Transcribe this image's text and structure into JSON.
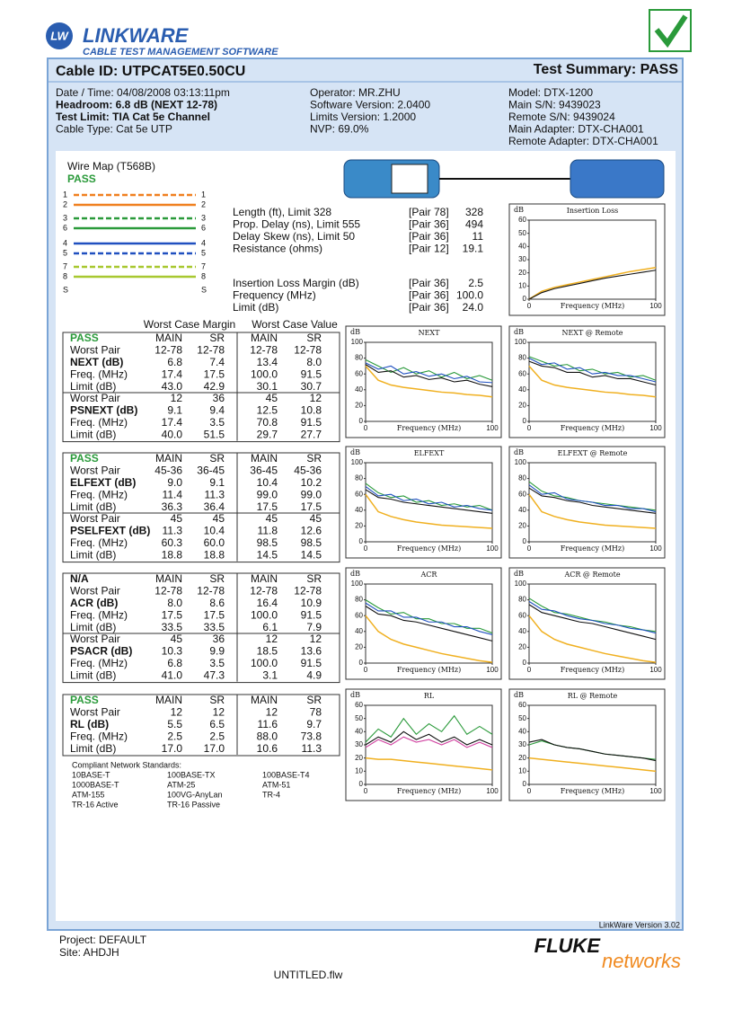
{
  "header": {
    "logo": "LW",
    "brand": "LINKWARE",
    "tagline": "CABLE TEST MANAGEMENT SOFTWARE"
  },
  "cable_id": "Cable ID: UTPCAT5E0.50CU",
  "summary": "Test Summary: PASS",
  "info": [
    [
      "Date / Time: 04/08/2008 03:13:11pm",
      "Headroom: 6.8 dB (NEXT 12-78)",
      "Test Limit: TIA Cat 5e Channel",
      "Cable Type: Cat 5e UTP"
    ],
    [
      "Operator: MR.ZHU",
      "Software Version: 2.0400",
      "Limits Version: 1.2000",
      "NVP: 69.0%"
    ],
    [
      "Model: DTX-1200",
      "Main S/N: 9439023",
      "Remote S/N: 9439024",
      "Main Adapter: DTX-CHA001",
      "Remote Adapter: DTX-CHA001"
    ]
  ],
  "wire_map": {
    "title": "Wire Map (T568B)",
    "status": "PASS",
    "pins": [
      "1",
      "2",
      "3",
      "6",
      "4",
      "5",
      "7",
      "8",
      "S"
    ]
  },
  "measurements": [
    [
      "Length (ft), Limit 328",
      "[Pair 78]",
      "328"
    ],
    [
      "Prop. Delay (ns), Limit 555",
      "[Pair 36]",
      "494"
    ],
    [
      "Delay Skew (ns), Limit 50",
      "[Pair 36]",
      "11"
    ],
    [
      "Resistance (ohms)",
      "[Pair 12]",
      "19.1"
    ]
  ],
  "insertion_loss": [
    [
      "Insertion Loss Margin (dB)",
      "[Pair 36]",
      "2.5"
    ],
    [
      "Frequency (MHz)",
      "[Pair 36]",
      "100.0"
    ],
    [
      "Limit (dB)",
      "[Pair 36]",
      "24.0"
    ]
  ],
  "table_headers": [
    "Worst Case Margin",
    "Worst Case Value"
  ],
  "sections": [
    {
      "status": "PASS",
      "columns": [
        "MAIN",
        "SR",
        "MAIN",
        "SR"
      ],
      "rows": [
        [
          "Worst Pair",
          "12-78",
          "12-78",
          "12-78",
          "12-78"
        ],
        [
          "NEXT (dB)",
          "6.8",
          "7.4",
          "13.4",
          "8.0"
        ],
        [
          "Freq. (MHz)",
          "17.4",
          "17.5",
          "100.0",
          "91.5"
        ],
        [
          "Limit (dB)",
          "43.0",
          "42.9",
          "30.1",
          "30.7"
        ],
        [
          "Worst Pair",
          "12",
          "36",
          "45",
          "12"
        ],
        [
          "PSNEXT (dB)",
          "9.1",
          "9.4",
          "12.5",
          "10.8"
        ],
        [
          "Freq. (MHz)",
          "17.4",
          "3.5",
          "70.8",
          "91.5"
        ],
        [
          "Limit (dB)",
          "40.0",
          "51.5",
          "29.7",
          "27.7"
        ]
      ]
    },
    {
      "status": "PASS",
      "columns": [
        "MAIN",
        "SR",
        "MAIN",
        "SR"
      ],
      "rows": [
        [
          "Worst Pair",
          "45-36",
          "36-45",
          "36-45",
          "45-36"
        ],
        [
          "ELFEXT (dB)",
          "9.0",
          "9.1",
          "10.4",
          "10.2"
        ],
        [
          "Freq. (MHz)",
          "11.4",
          "11.3",
          "99.0",
          "99.0"
        ],
        [
          "Limit (dB)",
          "36.3",
          "36.4",
          "17.5",
          "17.5"
        ],
        [
          "Worst Pair",
          "45",
          "45",
          "45",
          "45"
        ],
        [
          "PSELFEXT (dB)",
          "11.3",
          "10.4",
          "11.8",
          "12.6"
        ],
        [
          "Freq. (MHz)",
          "60.3",
          "60.0",
          "98.5",
          "98.5"
        ],
        [
          "Limit (dB)",
          "18.8",
          "18.8",
          "14.5",
          "14.5"
        ]
      ]
    },
    {
      "status": "N/A",
      "columns": [
        "MAIN",
        "SR",
        "MAIN",
        "SR"
      ],
      "rows": [
        [
          "Worst Pair",
          "12-78",
          "12-78",
          "12-78",
          "12-78"
        ],
        [
          "ACR (dB)",
          "8.0",
          "8.6",
          "16.4",
          "10.9"
        ],
        [
          "Freq. (MHz)",
          "17.5",
          "17.5",
          "100.0",
          "91.5"
        ],
        [
          "Limit (dB)",
          "33.5",
          "33.5",
          "6.1",
          "7.9"
        ],
        [
          "Worst Pair",
          "45",
          "36",
          "12",
          "12"
        ],
        [
          "PSACR (dB)",
          "10.3",
          "9.9",
          "18.5",
          "13.6"
        ],
        [
          "Freq. (MHz)",
          "6.8",
          "3.5",
          "100.0",
          "91.5"
        ],
        [
          "Limit (dB)",
          "41.0",
          "47.3",
          "3.1",
          "4.9"
        ]
      ]
    },
    {
      "status": "PASS",
      "columns": [
        "MAIN",
        "SR",
        "MAIN",
        "SR"
      ],
      "rows": [
        [
          "Worst Pair",
          "12",
          "12",
          "12",
          "78"
        ],
        [
          "RL (dB)",
          "5.5",
          "6.5",
          "11.6",
          "9.7"
        ],
        [
          "Freq. (MHz)",
          "2.5",
          "2.5",
          "88.0",
          "73.8"
        ],
        [
          "Limit (dB)",
          "17.0",
          "17.0",
          "10.6",
          "11.3"
        ]
      ]
    }
  ],
  "standards": {
    "title": "Compliant Network Standards:",
    "items": [
      "10BASE-T",
      "100BASE-TX",
      "100BASE-T4",
      "1000BASE-T",
      "ATM-25",
      "ATM-51",
      "ATM-155",
      "100VG-AnyLan",
      "TR-4",
      "TR-16 Active",
      "TR-16 Passive"
    ]
  },
  "plots": [
    {
      "title": "Insertion Loss",
      "ylabel": "dB",
      "xlabel": "Frequency (MHz)",
      "xlim": [
        0,
        100
      ],
      "ylim": [
        0,
        60
      ],
      "xticks": [
        0,
        100
      ],
      "yticks": [
        0,
        10,
        20,
        30,
        40,
        50,
        60
      ],
      "x": [
        0,
        10,
        20,
        30,
        40,
        50,
        60,
        70,
        80,
        90,
        100
      ],
      "series": [
        {
          "color": "#f0b020",
          "values": [
            0,
            6,
            9,
            11,
            13,
            15,
            17,
            19,
            21,
            22.5,
            24
          ]
        },
        {
          "color": "#111111",
          "values": [
            0,
            5,
            8,
            10,
            12,
            14,
            16,
            17.5,
            19,
            20.5,
            22
          ]
        }
      ]
    },
    {
      "title": "NEXT",
      "ylabel": "dB",
      "xlabel": "Frequency (MHz)",
      "xlim": [
        0,
        100
      ],
      "ylim": [
        0,
        100
      ],
      "xticks": [
        0,
        100
      ],
      "yticks": [
        0,
        20,
        40,
        60,
        80,
        100
      ],
      "x": [
        0,
        10,
        20,
        30,
        40,
        50,
        60,
        70,
        80,
        90,
        100
      ],
      "series": [
        {
          "color": "#f0b020",
          "values": [
            70,
            52,
            46,
            43,
            41,
            39,
            37,
            36,
            34,
            33,
            31
          ]
        },
        {
          "color": "#2a9a3a",
          "values": [
            78,
            70,
            62,
            68,
            60,
            64,
            56,
            62,
            54,
            58,
            52
          ]
        },
        {
          "color": "#2050c0",
          "values": [
            74,
            66,
            70,
            60,
            63,
            57,
            60,
            54,
            57,
            50,
            49
          ]
        },
        {
          "color": "#111111",
          "values": [
            72,
            62,
            64,
            56,
            58,
            53,
            55,
            50,
            52,
            47,
            44
          ]
        }
      ]
    },
    {
      "title": "NEXT @ Remote",
      "ylabel": "dB",
      "xlabel": "Frequency (MHz)",
      "xlim": [
        0,
        100
      ],
      "ylim": [
        0,
        100
      ],
      "xticks": [
        0,
        100
      ],
      "yticks": [
        0,
        20,
        40,
        60,
        80,
        100
      ],
      "x": [
        0,
        10,
        20,
        30,
        40,
        50,
        60,
        70,
        80,
        90,
        100
      ],
      "series": [
        {
          "color": "#f0b020",
          "values": [
            70,
            52,
            46,
            43,
            41,
            39,
            37,
            36,
            34,
            33,
            31
          ]
        },
        {
          "color": "#2a9a3a",
          "values": [
            82,
            76,
            70,
            72,
            64,
            66,
            60,
            62,
            56,
            58,
            52
          ]
        },
        {
          "color": "#2050c0",
          "values": [
            80,
            72,
            74,
            66,
            68,
            60,
            62,
            58,
            58,
            54,
            50
          ]
        },
        {
          "color": "#111111",
          "values": [
            76,
            70,
            68,
            62,
            62,
            56,
            58,
            54,
            54,
            50,
            46
          ]
        }
      ]
    },
    {
      "title": "ELFEXT",
      "ylabel": "dB",
      "xlabel": "Frequency (MHz)",
      "xlim": [
        0,
        100
      ],
      "ylim": [
        0,
        100
      ],
      "xticks": [
        0,
        100
      ],
      "yticks": [
        0,
        20,
        40,
        60,
        80,
        100
      ],
      "x": [
        0,
        10,
        20,
        30,
        40,
        50,
        60,
        70,
        80,
        90,
        100
      ],
      "series": [
        {
          "color": "#f0b020",
          "values": [
            60,
            38,
            32,
            28,
            25,
            23,
            21,
            20,
            19,
            18,
            17
          ]
        },
        {
          "color": "#2a9a3a",
          "values": [
            74,
            62,
            56,
            58,
            50,
            52,
            46,
            48,
            44,
            46,
            40
          ]
        },
        {
          "color": "#2050c0",
          "values": [
            70,
            58,
            60,
            52,
            54,
            48,
            50,
            44,
            46,
            42,
            40
          ]
        },
        {
          "color": "#111111",
          "values": [
            66,
            56,
            54,
            50,
            48,
            46,
            44,
            42,
            40,
            38,
            36
          ]
        }
      ]
    },
    {
      "title": "ELFEXT @ Remote",
      "ylabel": "dB",
      "xlabel": "Frequency (MHz)",
      "xlim": [
        0,
        100
      ],
      "ylim": [
        0,
        100
      ],
      "xticks": [
        0,
        100
      ],
      "yticks": [
        0,
        20,
        40,
        60,
        80,
        100
      ],
      "x": [
        0,
        10,
        20,
        30,
        40,
        50,
        60,
        70,
        80,
        90,
        100
      ],
      "series": [
        {
          "color": "#f0b020",
          "values": [
            60,
            38,
            32,
            28,
            25,
            23,
            21,
            20,
            19,
            18,
            17
          ]
        },
        {
          "color": "#2a9a3a",
          "values": [
            76,
            64,
            58,
            56,
            52,
            50,
            48,
            46,
            44,
            42,
            40
          ]
        },
        {
          "color": "#2050c0",
          "values": [
            72,
            60,
            62,
            54,
            52,
            50,
            46,
            46,
            42,
            42,
            38
          ]
        },
        {
          "color": "#111111",
          "values": [
            68,
            58,
            56,
            52,
            50,
            46,
            44,
            42,
            40,
            38,
            36
          ]
        }
      ]
    },
    {
      "title": "ACR",
      "ylabel": "dB",
      "xlabel": "Frequency (MHz)",
      "xlim": [
        0,
        100
      ],
      "ylim": [
        0,
        100
      ],
      "xticks": [
        0,
        100
      ],
      "yticks": [
        0,
        20,
        40,
        60,
        80,
        100
      ],
      "x": [
        0,
        10,
        20,
        30,
        40,
        50,
        60,
        70,
        80,
        90,
        100
      ],
      "series": [
        {
          "color": "#f0b020",
          "values": [
            60,
            40,
            30,
            24,
            20,
            16,
            12,
            9,
            6,
            3,
            1
          ]
        },
        {
          "color": "#2a9a3a",
          "values": [
            80,
            70,
            62,
            64,
            56,
            56,
            50,
            50,
            44,
            44,
            38
          ]
        },
        {
          "color": "#2050c0",
          "values": [
            76,
            66,
            66,
            58,
            58,
            52,
            52,
            46,
            46,
            40,
            36
          ]
        },
        {
          "color": "#111111",
          "values": [
            72,
            62,
            60,
            54,
            52,
            48,
            44,
            40,
            36,
            32,
            28
          ]
        }
      ]
    },
    {
      "title": "ACR @ Remote",
      "ylabel": "dB",
      "xlabel": "Frequency (MHz)",
      "xlim": [
        0,
        100
      ],
      "ylim": [
        0,
        100
      ],
      "xticks": [
        0,
        100
      ],
      "yticks": [
        0,
        20,
        40,
        60,
        80,
        100
      ],
      "x": [
        0,
        10,
        20,
        30,
        40,
        50,
        60,
        70,
        80,
        90,
        100
      ],
      "series": [
        {
          "color": "#f0b020",
          "values": [
            60,
            40,
            30,
            24,
            20,
            16,
            12,
            9,
            6,
            3,
            1
          ]
        },
        {
          "color": "#2a9a3a",
          "values": [
            82,
            72,
            64,
            62,
            58,
            54,
            52,
            48,
            46,
            42,
            40
          ]
        },
        {
          "color": "#2050c0",
          "values": [
            78,
            68,
            66,
            60,
            56,
            54,
            50,
            48,
            44,
            42,
            38
          ]
        },
        {
          "color": "#111111",
          "values": [
            74,
            64,
            60,
            56,
            52,
            50,
            46,
            42,
            38,
            34,
            30
          ]
        }
      ]
    },
    {
      "title": "RL",
      "ylabel": "dB",
      "xlabel": "Frequency (MHz)",
      "xlim": [
        0,
        100
      ],
      "ylim": [
        0,
        60
      ],
      "xticks": [
        0,
        100
      ],
      "yticks": [
        0,
        10,
        20,
        30,
        40,
        50,
        60
      ],
      "x": [
        0,
        10,
        20,
        30,
        40,
        50,
        60,
        70,
        80,
        90,
        100
      ],
      "series": [
        {
          "color": "#f0b020",
          "values": [
            20,
            19,
            19,
            18,
            17,
            16,
            15,
            14,
            13,
            12,
            11
          ]
        },
        {
          "color": "#2a9a3a",
          "values": [
            32,
            42,
            36,
            50,
            38,
            46,
            40,
            52,
            38,
            44,
            38
          ]
        },
        {
          "color": "#d040a0",
          "values": [
            28,
            34,
            30,
            36,
            32,
            34,
            30,
            34,
            28,
            32,
            28
          ]
        },
        {
          "color": "#111111",
          "values": [
            30,
            36,
            32,
            40,
            34,
            38,
            32,
            36,
            30,
            34,
            30
          ]
        }
      ]
    },
    {
      "title": "RL @ Remote",
      "ylabel": "dB",
      "xlabel": "Frequency (MHz)",
      "xlim": [
        0,
        100
      ],
      "ylim": [
        0,
        60
      ],
      "xticks": [
        0,
        100
      ],
      "yticks": [
        0,
        10,
        20,
        30,
        40,
        50,
        60
      ],
      "x": [
        0,
        10,
        20,
        30,
        40,
        50,
        60,
        70,
        80,
        90,
        100
      ],
      "series": [
        {
          "color": "#f0b020",
          "values": [
            20,
            19,
            18,
            17,
            16,
            15,
            14,
            13,
            12,
            11,
            10
          ]
        },
        {
          "color": "#2a9a3a",
          "values": [
            30,
            33,
            30,
            28,
            27,
            25,
            23,
            22,
            21,
            20,
            19
          ]
        },
        {
          "color": "#111111",
          "values": [
            32,
            34,
            30,
            28,
            27,
            25,
            23,
            22,
            21,
            20,
            18
          ]
        }
      ]
    }
  ],
  "footer": {
    "version": "LinkWare Version  3.02",
    "project": "Project: DEFAULT",
    "site": "Site: AHDJH",
    "file": "UNTITLED.flw",
    "brand": "FLUKE",
    "brand2": "networks"
  }
}
